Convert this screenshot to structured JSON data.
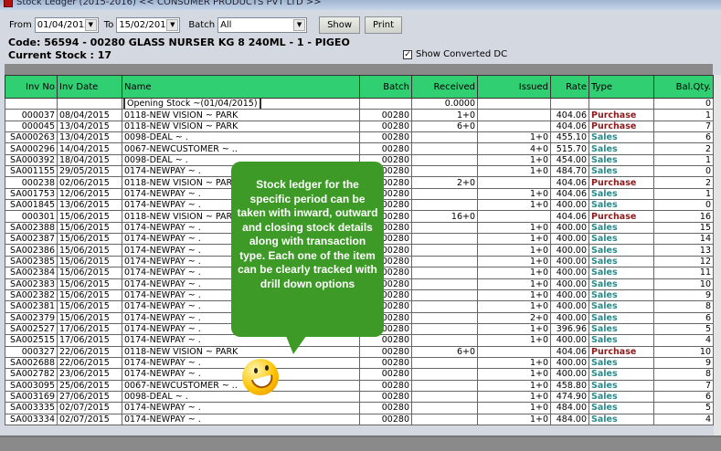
{
  "window": {
    "title": "Stock Ledger (2015-2016) << CONSUMER PRODUCTS PVT LTD >>"
  },
  "toolbar": {
    "from_label": "From",
    "from_value": "01/04/2015",
    "to_label": "To",
    "to_value": "15/02/2016",
    "batch_label": "Batch",
    "batch_value": "All",
    "show_label": "Show",
    "print_label": "Print"
  },
  "item": {
    "code": "Code: 56594 - 00280 GLASS NURSER KG 8 240ML - 1 - PIGEO",
    "current_stock": "Current Stock : 17"
  },
  "show_converted_dc": {
    "label": "Show Converted DC",
    "checked": true
  },
  "columns": [
    "Inv No",
    "Inv Date",
    "Name",
    "Batch",
    "Received",
    "Issued",
    "Rate",
    "Type",
    "Bal.Qty."
  ],
  "colors": {
    "header": "#2fcf72",
    "purchase": "#8b1a1a",
    "sales": "#2a8a8a",
    "callout": "#3d9a26"
  },
  "rows": [
    [
      "",
      "",
      "Opening Stock ~(01/04/2015)",
      "",
      "0.0000",
      "",
      "",
      "",
      "0"
    ],
    [
      "000037",
      "08/04/2015",
      "0118-NEW VISION ~ PARK",
      "00280",
      "1+0",
      "",
      "404.06",
      "Purchase",
      "1"
    ],
    [
      "000045",
      "13/04/2015",
      "0118-NEW VISION ~ PARK",
      "00280",
      "6+0",
      "",
      "404.06",
      "Purchase",
      "7"
    ],
    [
      "SA000263",
      "13/04/2015",
      "0098-DEAL ~ .",
      "00280",
      "",
      "1+0",
      "455.10",
      "Sales",
      "6"
    ],
    [
      "SA000296",
      "14/04/2015",
      "0067-NEWCUSTOMER ~ ..",
      "00280",
      "",
      "4+0",
      "515.70",
      "Sales",
      "2"
    ],
    [
      "SA000392",
      "18/04/2015",
      "0098-DEAL ~ .",
      "00280",
      "",
      "1+0",
      "454.00",
      "Sales",
      "1"
    ],
    [
      "SA001155",
      "29/05/2015",
      "0174-NEWPAY ~ .",
      "00280",
      "",
      "1+0",
      "484.70",
      "Sales",
      "0"
    ],
    [
      "000238",
      "02/06/2015",
      "0118-NEW VISION ~ PARK",
      "00280",
      "2+0",
      "",
      "404.06",
      "Purchase",
      "2"
    ],
    [
      "SA001753",
      "12/06/2015",
      "0174-NEWPAY ~ .",
      "00280",
      "",
      "1+0",
      "404.06",
      "Sales",
      "1"
    ],
    [
      "SA001845",
      "13/06/2015",
      "0174-NEWPAY ~ .",
      "00280",
      "",
      "1+0",
      "400.00",
      "Sales",
      "0"
    ],
    [
      "000301",
      "15/06/2015",
      "0118-NEW VISION ~ PARK",
      "00280",
      "16+0",
      "",
      "404.06",
      "Purchase",
      "16"
    ],
    [
      "SA002388",
      "15/06/2015",
      "0174-NEWPAY ~ .",
      "00280",
      "",
      "1+0",
      "400.00",
      "Sales",
      "15"
    ],
    [
      "SA002387",
      "15/06/2015",
      "0174-NEWPAY ~ .",
      "00280",
      "",
      "1+0",
      "400.00",
      "Sales",
      "14"
    ],
    [
      "SA002386",
      "15/06/2015",
      "0174-NEWPAY ~ .",
      "00280",
      "",
      "1+0",
      "400.00",
      "Sales",
      "13"
    ],
    [
      "SA002385",
      "15/06/2015",
      "0174-NEWPAY ~ .",
      "00280",
      "",
      "1+0",
      "400.00",
      "Sales",
      "12"
    ],
    [
      "SA002384",
      "15/06/2015",
      "0174-NEWPAY ~ .",
      "00280",
      "",
      "1+0",
      "400.00",
      "Sales",
      "11"
    ],
    [
      "SA002383",
      "15/06/2015",
      "0174-NEWPAY ~ .",
      "00280",
      "",
      "1+0",
      "400.00",
      "Sales",
      "10"
    ],
    [
      "SA002382",
      "15/06/2015",
      "0174-NEWPAY ~ .",
      "00280",
      "",
      "1+0",
      "400.00",
      "Sales",
      "9"
    ],
    [
      "SA002381",
      "15/06/2015",
      "0174-NEWPAY ~ .",
      "00280",
      "",
      "1+0",
      "400.00",
      "Sales",
      "8"
    ],
    [
      "SA002379",
      "15/06/2015",
      "0174-NEWPAY ~ .",
      "00280",
      "",
      "2+0",
      "400.00",
      "Sales",
      "6"
    ],
    [
      "SA002527",
      "17/06/2015",
      "0174-NEWPAY ~ .",
      "00280",
      "",
      "1+0",
      "396.96",
      "Sales",
      "5"
    ],
    [
      "SA002515",
      "17/06/2015",
      "0174-NEWPAY ~ .",
      "00280",
      "",
      "1+0",
      "400.00",
      "Sales",
      "4"
    ],
    [
      "000327",
      "22/06/2015",
      "0118-NEW VISION ~ PARK",
      "00280",
      "6+0",
      "",
      "404.06",
      "Purchase",
      "10"
    ],
    [
      "SA002688",
      "22/06/2015",
      "0174-NEWPAY ~ .",
      "00280",
      "",
      "1+0",
      "400.00",
      "Sales",
      "9"
    ],
    [
      "SA002782",
      "23/06/2015",
      "0174-NEWPAY ~ .",
      "00280",
      "",
      "1+0",
      "400.00",
      "Sales",
      "8"
    ],
    [
      "SA003095",
      "25/06/2015",
      "0067-NEWCUSTOMER ~ ..",
      "00280",
      "",
      "1+0",
      "458.80",
      "Sales",
      "7"
    ],
    [
      "SA003169",
      "27/06/2015",
      "0098-DEAL ~ .",
      "00280",
      "",
      "1+0",
      "474.90",
      "Sales",
      "6"
    ],
    [
      "SA003335",
      "02/07/2015",
      "0174-NEWPAY ~ .",
      "00280",
      "",
      "1+0",
      "484.00",
      "Sales",
      "5"
    ],
    [
      "SA003334",
      "02/07/2015",
      "0174-NEWPAY ~ .",
      "00280",
      "",
      "1+0",
      "484.00",
      "Sales",
      "4"
    ]
  ],
  "callout": {
    "text": "Stock ledger for the specific period can be taken with inward, outward and closing stock details along with transaction type. Each one of the item can be clearly tracked with drill down options"
  },
  "icons": {
    "app": "app-icon",
    "smiley": "smiley-icon",
    "dropdown": "chevron-down-icon"
  }
}
